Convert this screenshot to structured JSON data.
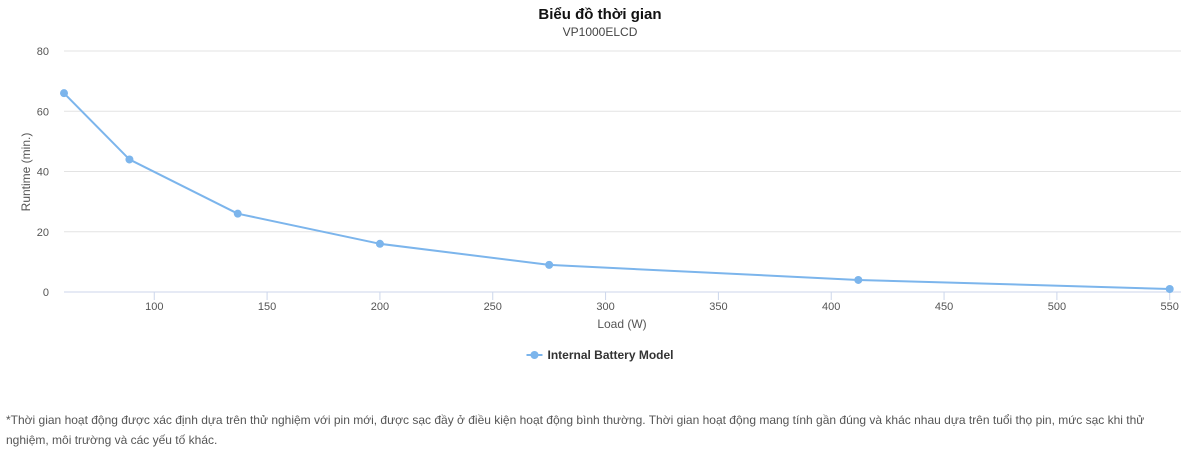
{
  "chart_data": {
    "type": "line",
    "title": "Biểu đồ thời gian",
    "subtitle": "VP1000ELCD",
    "xlabel": "Load (W)",
    "ylabel": "Runtime (min.)",
    "xlim": [
      60,
      555
    ],
    "ylim": [
      0,
      80
    ],
    "x_ticks": [
      100,
      150,
      200,
      250,
      300,
      350,
      400,
      450,
      500,
      550
    ],
    "y_ticks": [
      0,
      20,
      40,
      60,
      80
    ],
    "grid": true,
    "legend_position": "bottom-center",
    "series": [
      {
        "name": "Internal Battery Model",
        "color": "#7cb5ec",
        "x": [
          60,
          89,
          137,
          200,
          275,
          412,
          550
        ],
        "y": [
          66,
          44,
          26,
          16,
          9,
          4,
          1
        ]
      }
    ]
  },
  "footnote": "*Thời gian hoạt động được xác định dựa trên thử nghiệm với pin mới, được sạc đầy ở điều kiện hoạt động bình thường. Thời gian hoạt động mang tính gần đúng và khác nhau dựa trên tuổi thọ pin, mức sạc khi thử nghiệm, môi trường và các yếu tố khác."
}
